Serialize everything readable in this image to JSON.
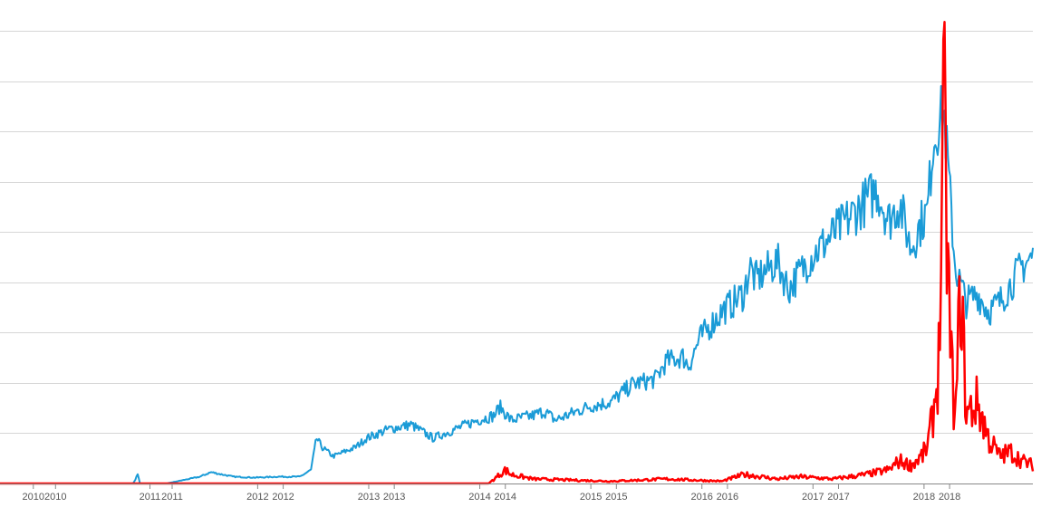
{
  "chart_data": {
    "type": "line",
    "title": "",
    "xlabel": "",
    "ylabel": "",
    "grid": true,
    "legend": "none",
    "ylim": [
      0,
      100
    ],
    "xlim": [
      2009.5,
      2018.8
    ],
    "x_tick_labels": [
      "2010",
      "2010",
      "2011",
      "2011",
      "2012",
      "2012",
      "2013",
      "2013",
      "2014",
      "2014",
      "2015",
      "2015",
      "2016",
      "2016",
      "2017",
      "2017",
      "2018",
      "2018"
    ],
    "x_tick_positions": [
      2009.8,
      2010.0,
      2010.85,
      2011.05,
      2011.82,
      2012.05,
      2012.82,
      2013.05,
      2013.82,
      2014.05,
      2014.82,
      2015.05,
      2015.82,
      2016.05,
      2016.82,
      2017.05,
      2017.82,
      2018.05
    ],
    "series": [
      {
        "name": "",
        "color": "#1a9bd7",
        "x": [
          2009.5,
          2010.0,
          2010.7,
          2010.74,
          2010.76,
          2010.8,
          2011.0,
          2011.1,
          2011.3,
          2011.4,
          2011.6,
          2011.8,
          2012.0,
          2012.2,
          2012.3,
          2012.35,
          2012.4,
          2012.5,
          2012.6,
          2012.7,
          2012.8,
          2013.0,
          2013.2,
          2013.4,
          2013.5,
          2013.6,
          2013.8,
          2013.95,
          2014.0,
          2014.1,
          2014.3,
          2014.4,
          2014.5,
          2014.6,
          2014.8,
          2015.0,
          2015.2,
          2015.4,
          2015.5,
          2015.65,
          2015.7,
          2015.8,
          2016.0,
          2016.2,
          2016.25,
          2016.3,
          2016.5,
          2016.6,
          2016.8,
          2017.0,
          2017.2,
          2017.4,
          2017.5,
          2017.6,
          2017.7,
          2017.8,
          2017.85,
          2017.9,
          2017.95,
          2018.0,
          2018.05,
          2018.1,
          2018.2,
          2018.3,
          2018.4,
          2018.5,
          2018.6,
          2018.7,
          2018.8
        ],
        "values": [
          0,
          0,
          0,
          2,
          0,
          0,
          0,
          0.5,
          1.5,
          2.5,
          1.5,
          1.3,
          1.5,
          1.5,
          3,
          10,
          8,
          6,
          7,
          8,
          10,
          12,
          13,
          10,
          11,
          12,
          14,
          15,
          17,
          14,
          15,
          16,
          14,
          15,
          17,
          18,
          22,
          23,
          27,
          28,
          26,
          32,
          38,
          42,
          48,
          45,
          49,
          43,
          50,
          55,
          60,
          65,
          58,
          62,
          52,
          58,
          60,
          75,
          80,
          82,
          65,
          48,
          40,
          42,
          38,
          40,
          44,
          48,
          50
        ]
      },
      {
        "name": "",
        "color": "#ff0000",
        "x": [
          2009.5,
          2013.5,
          2013.9,
          2014.0,
          2014.05,
          2014.1,
          2014.3,
          2015.0,
          2015.5,
          2016.0,
          2016.2,
          2016.5,
          2016.7,
          2017.0,
          2017.3,
          2017.5,
          2017.6,
          2017.7,
          2017.8,
          2017.85,
          2017.9,
          2017.95,
          2018.0,
          2018.05,
          2018.1,
          2018.15,
          2018.2,
          2018.3,
          2018.4,
          2018.5,
          2018.6,
          2018.7,
          2018.8
        ],
        "values": [
          0,
          0,
          0,
          2,
          3,
          2,
          1,
          0.5,
          1,
          0.5,
          2,
          1,
          1.5,
          1,
          2,
          3,
          5,
          4,
          6,
          8,
          15,
          25,
          80,
          35,
          12,
          45,
          15,
          18,
          10,
          6,
          7,
          5,
          4
        ]
      }
    ]
  }
}
